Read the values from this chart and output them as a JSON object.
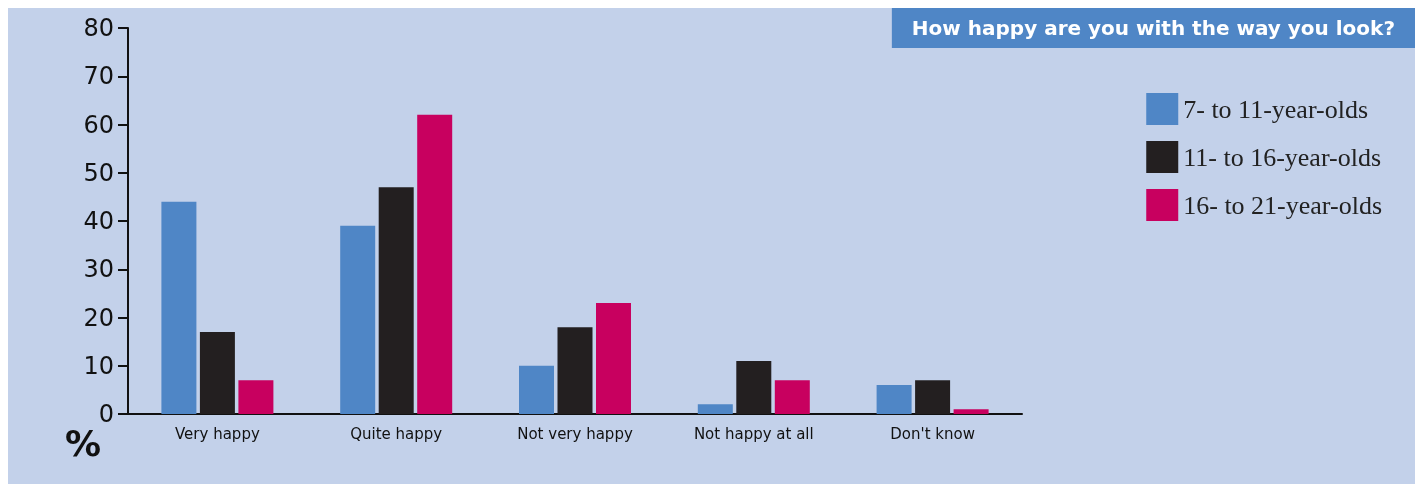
{
  "chart_data": {
    "type": "bar",
    "title": "How happy are you with the way you look?",
    "ylabel": "%",
    "categories": [
      "Very happy",
      "Quite happy",
      "Not very happy",
      "Not happy at all",
      "Don't know"
    ],
    "series": [
      {
        "name": "7- to 11-year-olds",
        "color": "#4f86c6",
        "values": [
          44,
          39,
          10,
          2,
          6
        ]
      },
      {
        "name": "11- to 16-year-olds",
        "color": "#231f20",
        "values": [
          17,
          47,
          18,
          11,
          7
        ]
      },
      {
        "name": "16- to 21-year-olds",
        "color": "#c8005f",
        "values": [
          7,
          62,
          23,
          7,
          1
        ]
      }
    ],
    "ylim": [
      0,
      80
    ],
    "yticks": [
      0,
      10,
      20,
      30,
      40,
      50,
      60,
      70,
      80
    ],
    "grid": false,
    "legend": "right"
  }
}
